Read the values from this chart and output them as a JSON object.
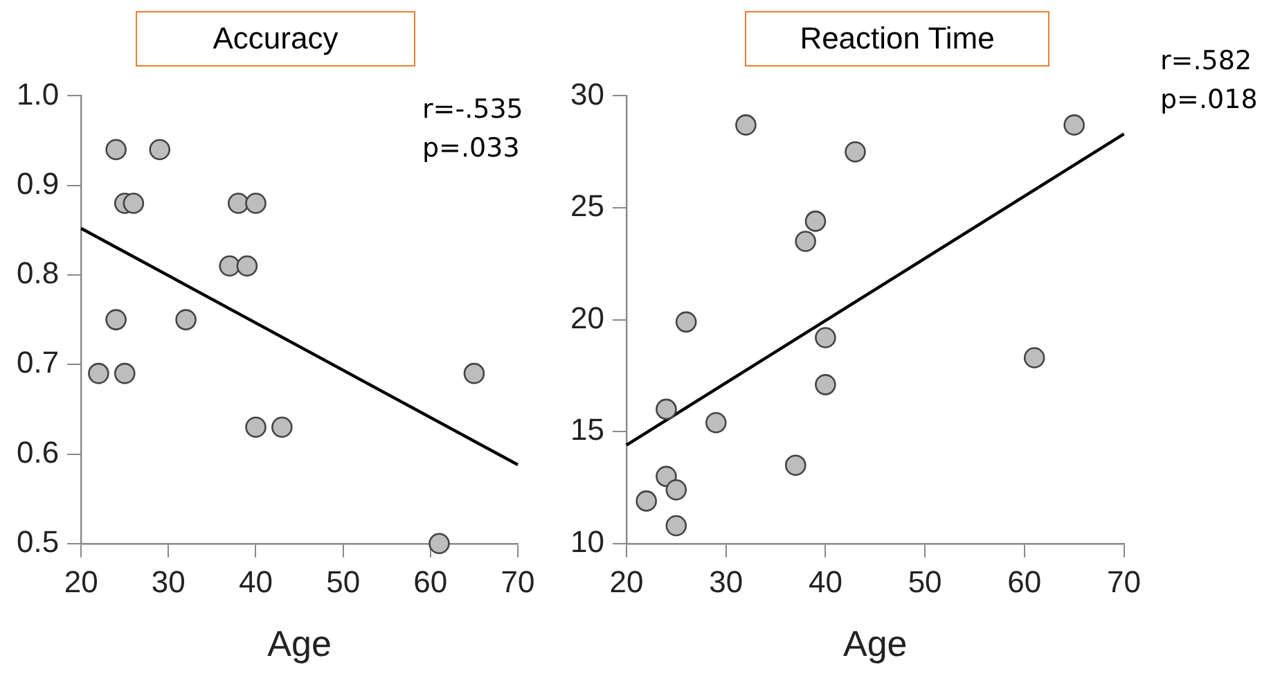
{
  "chart_data": [
    {
      "type": "scatter",
      "title": "Accuracy",
      "xlabel": "Age",
      "xlim": [
        20,
        70
      ],
      "xticks": [
        20,
        30,
        40,
        50,
        60,
        70
      ],
      "ylim": [
        0.5,
        1.0
      ],
      "yticks": [
        {
          "value": 0.5,
          "label": "0.5"
        },
        {
          "value": 0.6,
          "label": "0.6"
        },
        {
          "value": 0.7,
          "label": "0.7"
        },
        {
          "value": 0.8,
          "label": "0.8"
        },
        {
          "value": 0.9,
          "label": "0.9"
        },
        {
          "value": 1.0,
          "label": "1.0"
        }
      ],
      "marker": "circle",
      "annotations": [
        "r=-.535",
        "p=.033"
      ],
      "series": [
        {
          "type": "scatter",
          "color": "#bdbdbd",
          "x": [
            24,
            29,
            25,
            26,
            38,
            40,
            37,
            39,
            24,
            32,
            22,
            25,
            40,
            43,
            61,
            65
          ],
          "values": [
            0.94,
            0.94,
            0.88,
            0.88,
            0.88,
            0.88,
            0.81,
            0.81,
            0.75,
            0.75,
            0.69,
            0.69,
            0.63,
            0.63,
            0.5,
            0.69
          ]
        },
        {
          "type": "line",
          "color": "#000000",
          "marker": "none",
          "x": [
            20,
            70
          ],
          "values": [
            0.852,
            0.588
          ]
        }
      ]
    },
    {
      "type": "scatter",
      "title": "Reaction Time",
      "xlabel": "Age",
      "xlim": [
        20,
        70
      ],
      "xticks": [
        20,
        30,
        40,
        50,
        60,
        70
      ],
      "ylim": [
        10,
        30
      ],
      "yticks": [
        10,
        15,
        20,
        25,
        30
      ],
      "marker": "circle",
      "annotations": [
        "r=.582",
        "p=.018"
      ],
      "series": [
        {
          "type": "scatter",
          "color": "#bdbdbd",
          "x": [
            32,
            65,
            43,
            39,
            38,
            26,
            40,
            61,
            40,
            24,
            29,
            37,
            24,
            25,
            22,
            25
          ],
          "values": [
            28.7,
            28.7,
            27.5,
            24.4,
            23.5,
            19.9,
            19.2,
            18.3,
            17.1,
            16,
            15.4,
            13.5,
            13,
            12.4,
            11.9,
            10.8
          ]
        },
        {
          "type": "line",
          "color": "#000000",
          "marker": "none",
          "x": [
            20,
            70
          ],
          "values": [
            14.4,
            28.3
          ]
        }
      ]
    }
  ]
}
